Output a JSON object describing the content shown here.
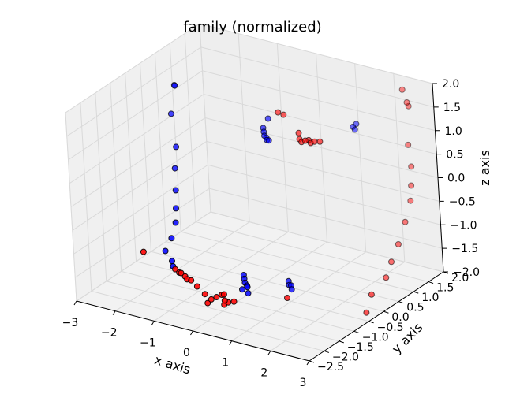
{
  "chart_data": {
    "type": "scatter3d",
    "title": "family (normalized)",
    "xlabel": "x axis",
    "ylabel": "y axis",
    "zlabel": "z axis",
    "xlim": [
      -3,
      3
    ],
    "ylim": [
      -2.5,
      2.0
    ],
    "zlim": [
      -2.0,
      2.0
    ],
    "xticks": [
      "−3",
      "−2",
      "−1",
      "0",
      "1",
      "2",
      "3"
    ],
    "yticks": [
      "−2.5",
      "−2.0",
      "−1.5",
      "−1.0",
      "−0.5",
      "0.0",
      "0.5",
      "1.0",
      "1.5",
      "2.0"
    ],
    "zticks": [
      "−2.0",
      "−1.5",
      "−1.0",
      "−0.5",
      "0.0",
      "0.5",
      "1.0",
      "1.5",
      "2.0"
    ],
    "grid": true,
    "colors": {
      "blue": "#0000ff",
      "red": "#ff0000",
      "pane": "#f0f0f0",
      "gridline": "#d9d9d9"
    },
    "series": [
      {
        "color": "blue",
        "points": [
          [
            -2.3,
            0.2,
            1.6
          ],
          [
            -2.25,
            0.15,
            1.62
          ],
          [
            -2.1,
            -0.2,
            1.2
          ],
          [
            -1.7,
            -0.6,
            0.75
          ],
          [
            -1.6,
            -0.8,
            0.4
          ],
          [
            -1.45,
            -1.0,
            0.05
          ],
          [
            -1.35,
            -1.15,
            -0.25
          ],
          [
            -1.3,
            -1.25,
            -0.5
          ],
          [
            -1.35,
            -1.35,
            -0.8
          ],
          [
            -1.45,
            -1.45,
            -1.05
          ],
          [
            -1.25,
            -1.5,
            -1.2
          ],
          [
            -1.15,
            -1.6,
            -1.25
          ],
          [
            -0.2,
            0.4,
            1.05
          ],
          [
            -0.15,
            0.35,
            1.0
          ],
          [
            -0.1,
            0.3,
            0.95
          ],
          [
            -0.05,
            0.3,
            0.92
          ],
          [
            0.0,
            0.25,
            0.9
          ],
          [
            0.05,
            0.25,
            0.9
          ],
          [
            -0.1,
            0.45,
            1.25
          ],
          [
            1.5,
            1.2,
            1.1
          ],
          [
            1.55,
            1.25,
            1.15
          ],
          [
            1.55,
            1.2,
            1.05
          ],
          [
            0.2,
            -1.0,
            -1.4
          ],
          [
            0.25,
            -1.05,
            -1.45
          ],
          [
            0.3,
            -1.1,
            -1.5
          ],
          [
            0.35,
            -1.1,
            -1.55
          ],
          [
            0.4,
            -1.15,
            -1.55
          ],
          [
            0.3,
            -1.2,
            -1.6
          ],
          [
            0.45,
            -1.2,
            -1.65
          ],
          [
            1.05,
            -0.6,
            -1.6
          ],
          [
            1.1,
            -0.6,
            -1.6
          ],
          [
            1.15,
            -0.65,
            -1.65
          ],
          [
            1.0,
            -0.55,
            -1.55
          ]
        ]
      },
      {
        "color": "red",
        "points": [
          [
            -1.9,
            -1.6,
            -1.1
          ],
          [
            -1.1,
            -1.6,
            -1.3
          ],
          [
            -1.0,
            -1.6,
            -1.35
          ],
          [
            -0.95,
            -1.6,
            -1.35
          ],
          [
            -0.85,
            -1.6,
            -1.4
          ],
          [
            -0.8,
            -1.6,
            -1.45
          ],
          [
            -0.7,
            -1.6,
            -1.45
          ],
          [
            -0.55,
            -1.6,
            -1.55
          ],
          [
            -0.4,
            -1.55,
            -1.7
          ],
          [
            -0.3,
            -1.6,
            -1.85
          ],
          [
            -0.2,
            -1.6,
            -1.75
          ],
          [
            -0.1,
            -1.55,
            -1.7
          ],
          [
            0.0,
            -1.5,
            -1.65
          ],
          [
            0.1,
            -1.55,
            -1.6
          ],
          [
            0.15,
            -1.6,
            -1.7
          ],
          [
            0.05,
            -1.5,
            -1.85
          ],
          [
            0.2,
            -1.55,
            -1.75
          ],
          [
            0.35,
            -1.55,
            -1.7
          ],
          [
            1.1,
            -0.75,
            -1.8
          ],
          [
            0.65,
            0.5,
            0.95
          ],
          [
            0.7,
            0.5,
            0.9
          ],
          [
            0.8,
            0.5,
            0.95
          ],
          [
            0.85,
            0.55,
            0.95
          ],
          [
            0.9,
            0.55,
            0.9
          ],
          [
            1.0,
            0.55,
            0.95
          ],
          [
            1.1,
            0.6,
            0.95
          ],
          [
            0.6,
            0.55,
            1.05
          ],
          [
            0.05,
            0.6,
            1.35
          ],
          [
            0.15,
            0.65,
            1.3
          ],
          [
            2.2,
            2.0,
            1.7
          ],
          [
            2.3,
            2.0,
            1.45
          ],
          [
            2.3,
            2.05,
            1.35
          ],
          [
            2.35,
            1.9,
            0.6
          ],
          [
            2.4,
            1.9,
            0.15
          ],
          [
            2.45,
            1.8,
            -0.2
          ],
          [
            2.45,
            1.75,
            -0.5
          ],
          [
            2.4,
            1.6,
            -0.9
          ],
          [
            2.35,
            1.4,
            -1.3
          ],
          [
            2.3,
            1.2,
            -1.6
          ],
          [
            2.3,
            1.0,
            -1.85
          ],
          [
            2.3,
            0.5,
            -2.0
          ],
          [
            2.3,
            0.3,
            -2.3
          ]
        ]
      }
    ]
  }
}
